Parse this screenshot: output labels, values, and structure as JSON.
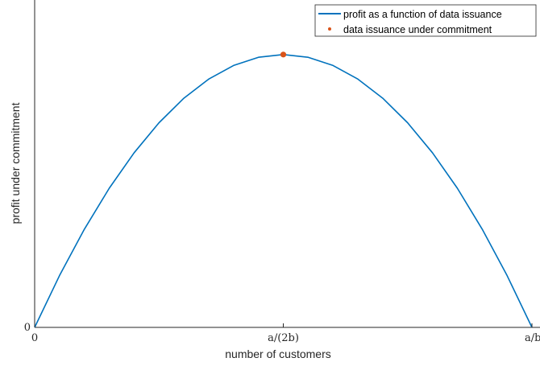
{
  "chart_data": {
    "type": "line",
    "xlabel": "number of customers",
    "ylabel": "profit under commitment",
    "x_ticks": [
      {
        "value": 0,
        "label": "0"
      },
      {
        "value": 0.5,
        "label": "a/(2b)"
      },
      {
        "value": 1,
        "label": "a/b"
      }
    ],
    "y_ticks": [
      {
        "value": 0,
        "label": "0"
      }
    ],
    "xlim": [
      0,
      1
    ],
    "ylim": [
      0,
      1.2
    ],
    "grid": false,
    "legend_position": "top-right",
    "series": [
      {
        "name": "profit as a function of data issuance",
        "kind": "line",
        "color": "#0072BD",
        "x": [
          0,
          0.05,
          0.1,
          0.15,
          0.2,
          0.25,
          0.3,
          0.35,
          0.4,
          0.45,
          0.5,
          0.55,
          0.6,
          0.65,
          0.7,
          0.75,
          0.8,
          0.85,
          0.9,
          0.95,
          1
        ],
        "y": [
          0,
          0.19,
          0.36,
          0.51,
          0.64,
          0.75,
          0.84,
          0.91,
          0.96,
          0.99,
          1,
          0.99,
          0.96,
          0.91,
          0.84,
          0.75,
          0.64,
          0.51,
          0.36,
          0.19,
          0
        ]
      },
      {
        "name": "data issuance under commitment",
        "kind": "point",
        "color": "#D95319",
        "x": [
          0.5
        ],
        "y": [
          1
        ]
      }
    ]
  }
}
